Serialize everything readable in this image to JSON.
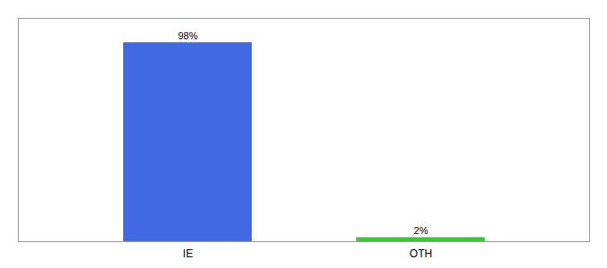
{
  "chart_data": {
    "type": "bar",
    "categories": [
      "IE",
      "OTH"
    ],
    "values": [
      98,
      2
    ],
    "value_labels": [
      "98%",
      "2%"
    ],
    "colors": [
      "#4169e1",
      "#32cd32"
    ],
    "ylim": [
      0,
      110
    ],
    "data_labels": true,
    "tick_labels": "x"
  }
}
